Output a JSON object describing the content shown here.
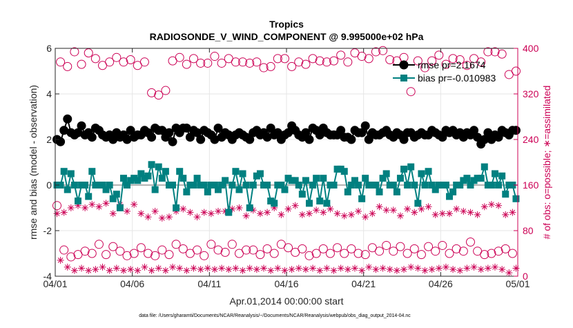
{
  "chart_data": {
    "type": "line",
    "title": "Tropics",
    "subtitle": "RADIOSONDE_V_WIND_COMPONENT @ 9.995000e+02 hPa",
    "xlabel": "Apr.01,2014 00:00:00 start",
    "ylabel": "rmse and bias (model - observation)",
    "ylabel_right": "# of obs: o=possible; ∗=assimilated",
    "footnote": "data file: /Users/gharamti/Documents/NCAR/Reanalysis/~/Documents/NCAR/Reanalysis/webpub/obs_diag_output_2014-04.nc",
    "x_ticks": [
      0,
      5,
      10,
      15,
      20,
      25,
      30
    ],
    "x_tick_labels": [
      "04/01",
      "04/06",
      "04/11",
      "04/16",
      "04/21",
      "04/26",
      "05/01"
    ],
    "xlim": [
      0,
      30
    ],
    "ylim_left": [
      -4,
      6
    ],
    "yticks_left": [
      -4,
      -2,
      0,
      2,
      4,
      6
    ],
    "ytick_labels_left": [
      "-4",
      "-2",
      "0",
      "2",
      "4",
      "6"
    ],
    "ylim_right": [
      0,
      400
    ],
    "yticks_right": [
      0,
      80,
      160,
      240,
      320,
      400
    ],
    "ytick_labels_right": [
      "0",
      "80",
      "160",
      "240",
      "320",
      "400"
    ],
    "colors": {
      "rmse": "#000000",
      "bias": "#008080",
      "obs": "#cc0055",
      "zero_line": "#b3b3b3",
      "axis": "#262626"
    },
    "legend": [
      {
        "name": "rmse pr=2.1674",
        "color": "#000000",
        "marker": "circle"
      },
      {
        "name": "bias pr=-0.010983",
        "color": "#008080",
        "marker": "square"
      }
    ],
    "legend_position": "top-right",
    "series_note": "x values are days since 04/01 00:00, 4 analysis times per day (00,06,12,18Z)",
    "series": [
      {
        "name": "rmse",
        "axis": "left",
        "marker": "circle",
        "values": [
          2.0,
          1.9,
          2.4,
          2.9,
          2.3,
          2.2,
          2.3,
          2.6,
          2.2,
          2.3,
          2.1,
          2.5,
          2.4,
          2.2,
          2.1,
          2.2,
          2.0,
          2.3,
          2.1,
          2.2,
          2.0,
          2.4,
          2.1,
          2.2,
          2.2,
          2.4,
          2.3,
          2.1,
          2.5,
          2.4,
          2.4,
          2.1,
          2.3,
          1.9,
          2.5,
          2.3,
          2.5,
          2.5,
          2.1,
          2.4,
          2.3,
          2.0,
          2.4,
          2.3,
          2.2,
          2.0,
          2.5,
          2.1,
          2.3,
          2.2,
          2.0,
          2.2,
          2.3,
          2.2,
          2.1,
          2.0,
          2.3,
          2.4,
          2.2,
          2.3,
          2.1,
          2.5,
          2.2,
          2.3,
          2.0,
          2.2,
          2.3,
          2.6,
          2.4,
          2.2,
          2.1,
          2.3,
          2.0,
          2.5,
          2.4,
          2.2,
          2.5,
          2.3,
          2.2,
          2.2,
          2.2,
          2.4,
          2.1,
          2.1,
          2.0,
          2.4,
          2.3,
          2.3,
          2.6,
          2.0,
          2.3,
          2.2,
          2.2,
          2.3,
          2.4,
          2.2,
          2.1,
          2.3,
          2.2,
          2.0,
          2.3,
          2.3,
          2.1,
          2.2,
          2.3,
          2.2,
          2.2,
          2.4,
          2.3,
          2.2,
          2.1,
          2.4,
          2.3,
          2.4,
          2.2,
          2.3,
          2.1,
          2.3,
          2.2,
          2.4,
          2.1,
          1.8,
          2.0,
          2.3,
          2.0,
          2.2,
          2.1,
          2.4,
          2.3,
          2.2,
          2.4,
          2.4
        ]
      },
      {
        "name": "bias",
        "axis": "left",
        "marker": "square",
        "values": [
          0.0,
          0.0,
          0.6,
          -0.2,
          0.5,
          0.0,
          -0.7,
          0.0,
          0.0,
          -0.5,
          0.6,
          0.0,
          0.0,
          0.0,
          -0.2,
          0.0,
          -0.6,
          -0.4,
          -1.0,
          0.3,
          0.0,
          0.2,
          0.3,
          0.2,
          0.5,
          0.3,
          0.4,
          0.9,
          -0.2,
          0.8,
          0.3,
          0.6,
          0.0,
          0.0,
          -1.0,
          0.6,
          0.3,
          -0.3,
          0.0,
          0.0,
          0.3,
          0.0,
          0.0,
          -0.3,
          0.0,
          0.0,
          -0.2,
          0.0,
          0.2,
          -1.2,
          0.0,
          0.6,
          -0.2,
          0.5,
          0.0,
          -1.0,
          0.0,
          0.4,
          0.5,
          0.0,
          0.0,
          -0.7,
          -0.8,
          0.0,
          0.0,
          -0.2,
          0.3,
          0.2,
          0.2,
          0.0,
          -0.4,
          0.2,
          -0.8,
          0.0,
          0.3,
          -0.7,
          0.3,
          -0.8,
          0.0,
          0.0,
          0.7,
          0.7,
          0.6,
          -0.3,
          0.0,
          0.2,
          0.0,
          -0.6,
          0.3,
          0.0,
          0.0,
          0.0,
          -0.3,
          0.3,
          0.5,
          0.0,
          0.0,
          -0.3,
          0.3,
          0.7,
          0.0,
          0.8,
          0.0,
          -0.8,
          0.5,
          0.0,
          0.6,
          0.0,
          -0.2,
          0.0,
          0.0,
          0.0,
          -0.5,
          -0.3,
          0.0,
          0.0,
          0.2,
          0.3,
          0.0,
          0.2,
          0.3,
          0.3,
          0.8,
          0.0,
          0.0,
          0.5,
          0.0,
          0.4,
          -0.4,
          0.0,
          0.0,
          -0.6
        ]
      },
      {
        "name": "# obs possible",
        "axis": "right",
        "marker": "open-circle",
        "values": [
          124,
          376,
          46,
          368,
          34,
          394,
          38,
          372,
          44,
          392,
          40,
          382,
          56,
          370,
          38,
          376,
          52,
          384,
          44,
          376,
          36,
          380,
          40,
          370,
          50,
          376,
          40,
          322,
          36,
          318,
          46,
          326,
          38,
          378,
          56,
          384,
          48,
          372,
          40,
          382,
          46,
          374,
          36,
          374,
          56,
          386,
          46,
          374,
          42,
          382,
          56,
          376,
          40,
          376,
          46,
          374,
          46,
          376,
          38,
          366,
          48,
          368,
          40,
          382,
          56,
          382,
          50,
          368,
          42,
          376,
          48,
          372,
          36,
          382,
          40,
          378,
          48,
          376,
          40,
          378,
          50,
          388,
          40,
          376,
          48,
          392,
          40,
          386,
          38,
          382,
          50,
          394,
          44,
          396,
          54,
          380,
          44,
          378,
          52,
          384,
          40,
          324,
          48,
          378,
          38,
          366,
          52,
          378,
          44,
          388,
          54,
          372,
          40,
          382,
          48,
          380,
          44,
          370,
          60,
          382,
          44,
          376,
          38,
          394,
          40,
          394,
          44,
          390,
          48,
          354,
          40,
          360
        ]
      },
      {
        "name": "# obs assimilated",
        "axis": "right",
        "marker": "asterisk",
        "values": [
          110,
          28,
          112,
          16,
          120,
          10,
          124,
          14,
          120,
          10,
          126,
          12,
          122,
          16,
          128,
          10,
          110,
          14,
          126,
          10,
          114,
          12,
          126,
          10,
          110,
          16,
          104,
          10,
          114,
          14,
          102,
          10,
          104,
          16,
          114,
          14,
          118,
          10,
          112,
          14,
          104,
          12,
          112,
          14,
          110,
          12,
          114,
          14,
          114,
          12,
          118,
          14,
          120,
          10,
          106,
          14,
          116,
          12,
          110,
          14,
          112,
          10,
          120,
          14,
          108,
          10,
          118,
          12,
          124,
          14,
          108,
          12,
          110,
          14,
          116,
          10,
          112,
          14,
          118,
          10,
          110,
          14,
          106,
          12,
          108,
          14,
          114,
          10,
          104,
          16,
          110,
          12,
          122,
          14,
          116,
          12,
          116,
          10,
          106,
          12,
          118,
          16,
          112,
          14,
          118,
          10,
          122,
          12,
          108,
          14,
          110,
          16,
          110,
          12,
          118,
          10,
          114,
          14,
          112,
          16,
          108,
          12,
          122,
          14,
          126,
          16,
          124,
          12,
          108,
          6,
          112,
          14
        ]
      }
    ]
  }
}
